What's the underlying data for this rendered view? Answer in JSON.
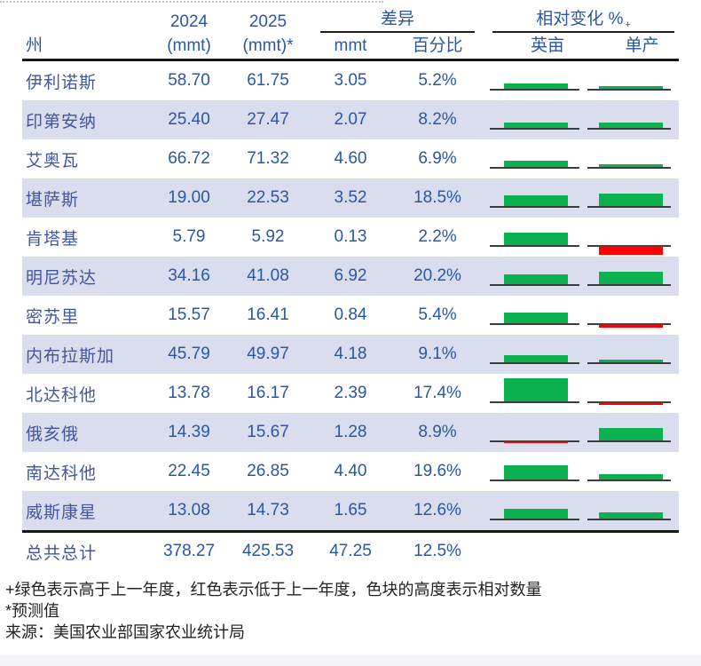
{
  "header": {
    "col_state": "州",
    "y2024": "2024",
    "y2024_unit": "(mmt)",
    "y2025": "2025",
    "y2025_unit": "(mmt)*",
    "diff_group": "差异",
    "col_mmt": "mmt",
    "col_pct": "百分比",
    "rel_group": "相对变化 %",
    "rel_group_sup": "+",
    "col_acres": "英亩",
    "col_yield": "单产"
  },
  "rows": [
    {
      "state": "伊利诺斯",
      "y2024": "58.70",
      "y2025": "61.75",
      "diff_mmt": "3.05",
      "diff_pct": "5.2%",
      "acres_bar": {
        "dir": "up",
        "height": 6
      },
      "yield_bar": {
        "dir": "up",
        "height": 3
      }
    },
    {
      "state": "印第安纳",
      "y2024": "25.40",
      "y2025": "27.47",
      "diff_mmt": "2.07",
      "diff_pct": "8.2%",
      "acres_bar": {
        "dir": "up",
        "height": 6
      },
      "yield_bar": {
        "dir": "up",
        "height": 6
      }
    },
    {
      "state": "艾奥瓦",
      "y2024": "66.72",
      "y2025": "71.32",
      "diff_mmt": "4.60",
      "diff_pct": "6.9%",
      "acres_bar": {
        "dir": "up",
        "height": 7
      },
      "yield_bar": {
        "dir": "up",
        "height": 3
      }
    },
    {
      "state": "堪萨斯",
      "y2024": "19.00",
      "y2025": "22.53",
      "diff_mmt": "3.52",
      "diff_pct": "18.5%",
      "acres_bar": {
        "dir": "up",
        "height": 12
      },
      "yield_bar": {
        "dir": "up",
        "height": 14
      }
    },
    {
      "state": "肯塔基",
      "y2024": "5.79",
      "y2025": "5.92",
      "diff_mmt": "0.13",
      "diff_pct": "2.2%",
      "acres_bar": {
        "dir": "up",
        "height": 14
      },
      "yield_bar": {
        "dir": "down",
        "height": 10
      }
    },
    {
      "state": "明尼苏达",
      "y2024": "34.16",
      "y2025": "41.08",
      "diff_mmt": "6.92",
      "diff_pct": "20.2%",
      "acres_bar": {
        "dir": "up",
        "height": 11
      },
      "yield_bar": {
        "dir": "up",
        "height": 14
      }
    },
    {
      "state": "密苏里",
      "y2024": "15.57",
      "y2025": "16.41",
      "diff_mmt": "0.84",
      "diff_pct": "5.4%",
      "acres_bar": {
        "dir": "up",
        "height": 12
      },
      "yield_bar": {
        "dir": "down",
        "height": 4
      }
    },
    {
      "state": "内布拉斯加",
      "y2024": "45.79",
      "y2025": "49.97",
      "diff_mmt": "4.18",
      "diff_pct": "9.1%",
      "acres_bar": {
        "dir": "up",
        "height": 8
      },
      "yield_bar": {
        "dir": "up",
        "height": 3
      }
    },
    {
      "state": "北达科他",
      "y2024": "13.78",
      "y2025": "16.17",
      "diff_mmt": "2.39",
      "diff_pct": "17.4%",
      "acres_bar": {
        "dir": "up",
        "height": 26
      },
      "yield_bar": {
        "dir": "down",
        "height": 3
      }
    },
    {
      "state": "俄亥俄",
      "y2024": "14.39",
      "y2025": "15.67",
      "diff_mmt": "1.28",
      "diff_pct": "8.9%",
      "acres_bar": {
        "dir": "down",
        "height": 2
      },
      "yield_bar": {
        "dir": "up",
        "height": 14
      }
    },
    {
      "state": "南达科他",
      "y2024": "22.45",
      "y2025": "26.85",
      "diff_mmt": "4.40",
      "diff_pct": "19.6%",
      "acres_bar": {
        "dir": "up",
        "height": 16
      },
      "yield_bar": {
        "dir": "up",
        "height": 6
      }
    },
    {
      "state": "威斯康星",
      "y2024": "13.08",
      "y2025": "14.73",
      "diff_mmt": "1.65",
      "diff_pct": "12.6%",
      "acres_bar": {
        "dir": "up",
        "height": 11
      },
      "yield_bar": {
        "dir": "up",
        "height": 7
      }
    }
  ],
  "total": {
    "label": "总共总计",
    "y2024": "378.27",
    "y2025": "425.53",
    "diff_mmt": "47.25",
    "diff_pct": "12.5%"
  },
  "footnotes": {
    "legend": "+绿色表示高于上一年度，红色表示低于上一年度，色块的高度表示相对数量",
    "forecast": "*预测值",
    "source": "来源：美国农业部国家农业统计局"
  },
  "colors": {
    "green": "#0cb14f",
    "red": "#fb0202",
    "row_shade": "#dadded",
    "text_blue": "#2a57a5",
    "state_blue": "#41569f"
  }
}
